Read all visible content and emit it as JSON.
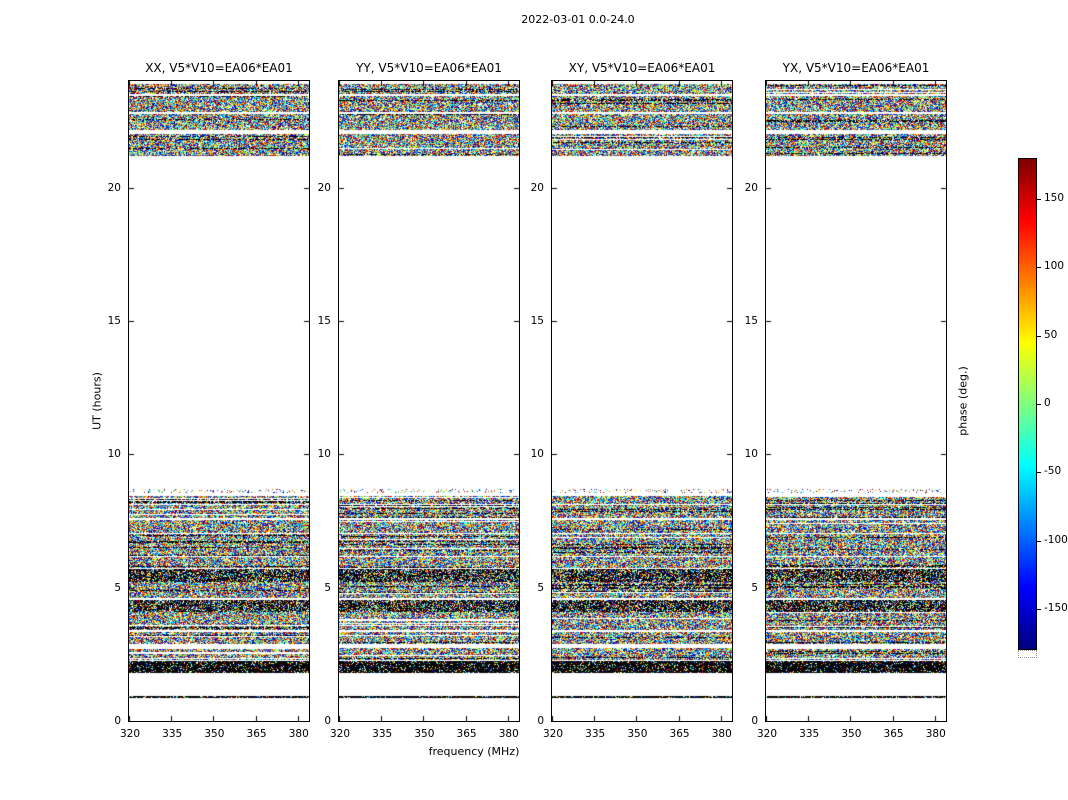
{
  "figure": {
    "title": "2022-03-01 0.0-24.0"
  },
  "chart_data": {
    "type": "heatmap",
    "title": "2022-03-01 0.0-24.0",
    "description": "Interferometric visibility phase vs frequency and time for baseline V5*V10=EA06*EA01, four polarization products. Data (random-looking colored phase noise) is present only in the UT bands listed in data_bands; elsewhere blank.",
    "panels": [
      {
        "label": "XX, V5*V10=EA06*EA01",
        "polarization": "XX",
        "baseline": "V5*V10=EA06*EA01"
      },
      {
        "label": "YY, V5*V10=EA06*EA01",
        "polarization": "YY",
        "baseline": "V5*V10=EA06*EA01"
      },
      {
        "label": "XY, V5*V10=EA06*EA01",
        "polarization": "XY",
        "baseline": "V5*V10=EA06*EA01"
      },
      {
        "label": "YX, V5*V10=EA06*EA01",
        "polarization": "YX",
        "baseline": "V5*V10=EA06*EA01"
      }
    ],
    "x": {
      "label": "frequency (MHz)",
      "range": [
        320,
        384
      ],
      "ticks": [
        320,
        335,
        350,
        365,
        380
      ]
    },
    "y": {
      "label": "UT (hours)",
      "range": [
        0,
        24
      ],
      "ticks": [
        0,
        5,
        10,
        15,
        20
      ]
    },
    "colorbar": {
      "label": "phase (deg.)",
      "range": [
        -180,
        180
      ],
      "ticks": [
        150,
        100,
        50,
        0,
        -50,
        -100,
        -150
      ],
      "colormap": "jet"
    },
    "data_bands": [
      {
        "t_start": 0.85,
        "t_end": 0.95,
        "style": "dark"
      },
      {
        "t_start": 1.8,
        "t_end": 2.25,
        "style": "dark"
      },
      {
        "t_start": 2.3,
        "t_end": 2.75,
        "style": "noise"
      },
      {
        "t_start": 2.9,
        "t_end": 3.35,
        "style": "noise"
      },
      {
        "t_start": 3.4,
        "t_end": 4.1,
        "style": "noise"
      },
      {
        "t_start": 4.1,
        "t_end": 4.55,
        "style": "darknoise"
      },
      {
        "t_start": 4.6,
        "t_end": 5.2,
        "style": "noise"
      },
      {
        "t_start": 5.2,
        "t_end": 5.7,
        "style": "darknoise"
      },
      {
        "t_start": 5.75,
        "t_end": 6.15,
        "style": "noise"
      },
      {
        "t_start": 6.2,
        "t_end": 7.0,
        "style": "noise"
      },
      {
        "t_start": 7.05,
        "t_end": 7.55,
        "style": "noise"
      },
      {
        "t_start": 7.6,
        "t_end": 8.1,
        "style": "noise"
      },
      {
        "t_start": 8.15,
        "t_end": 8.45,
        "style": "noise"
      },
      {
        "t_start": 8.55,
        "t_end": 8.7,
        "style": "sparse"
      },
      {
        "t_start": 21.2,
        "t_end": 22.0,
        "style": "noise"
      },
      {
        "t_start": 22.15,
        "t_end": 22.75,
        "style": "noise"
      },
      {
        "t_start": 22.85,
        "t_end": 23.42,
        "style": "noise"
      },
      {
        "t_start": 23.5,
        "t_end": 23.87,
        "style": "noise"
      }
    ]
  }
}
